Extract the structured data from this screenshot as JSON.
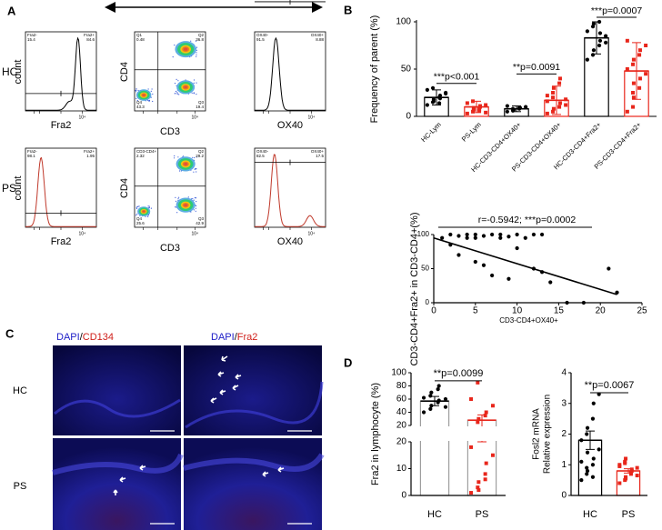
{
  "panel_labels": {
    "a": "A",
    "b": "B",
    "c": "C",
    "d": "D"
  },
  "panel_a": {
    "row_labels": [
      "HC",
      "PS"
    ],
    "count_label": "count",
    "x_labels": [
      "Fra2",
      "CD3",
      "OX40"
    ],
    "cd4_label": "CD4",
    "tick_label": "10⁴",
    "rows": [
      {
        "fra2": [
          "Fra2-",
          "15.4",
          "Fra2+",
          "84.6"
        ],
        "cd3cd4": [
          "Q1",
          "0.48",
          "Q2",
          "36.8",
          "Q4",
          "43.3",
          "Q3",
          "19.4"
        ],
        "ox40": [
          "OX40-",
          "91.5",
          "OX40+",
          "8.88"
        ]
      },
      {
        "fra2": [
          "Fra2-",
          "98.1",
          "Fra2+",
          "1.95"
        ],
        "cd3cd4": [
          "CD3-CD4+",
          "2.32",
          "Q2",
          "29.2",
          "Q4",
          "25.6",
          "Q3",
          "42.9"
        ],
        "ox40": [
          "OX40-",
          "82.5",
          "OX40+",
          "17.5"
        ]
      }
    ]
  },
  "panel_b": {
    "bar_chart": {
      "type": "dot-bar",
      "y_label": "Frequency of parent (%)",
      "categories": [
        "HC-Lym",
        "PS-Lym",
        "HC-CD3-CD4+OX40+",
        "PS-CD3-CD4+OX40+",
        "HC-CD3-CD4+Fra2+",
        "PS-CD3-CD4+Fra2+"
      ],
      "means": [
        20,
        10,
        8,
        17,
        83,
        48
      ],
      "errors": [
        8,
        6,
        3,
        15,
        17,
        30
      ],
      "points": [
        [
          12,
          15,
          18,
          20,
          22,
          25,
          28,
          30,
          16,
          14,
          19,
          24
        ],
        [
          3,
          5,
          7,
          8,
          10,
          12,
          14,
          16,
          9,
          6,
          11,
          4
        ],
        [
          5,
          6,
          7,
          8,
          9,
          10,
          11,
          8,
          7,
          9
        ],
        [
          3,
          5,
          8,
          10,
          14,
          18,
          22,
          25,
          30,
          35,
          40,
          12,
          16,
          20
        ],
        [
          60,
          65,
          70,
          75,
          80,
          85,
          90,
          95,
          98,
          100,
          88,
          78
        ],
        [
          5,
          10,
          20,
          30,
          40,
          45,
          50,
          55,
          60,
          65,
          70,
          75,
          80,
          25,
          35
        ]
      ],
      "colors": [
        "#000000",
        "#e8261b",
        "#000000",
        "#e8261b",
        "#000000",
        "#e8261b"
      ],
      "markers": [
        "circle",
        "square",
        "circle",
        "square",
        "circle",
        "square"
      ],
      "ylim": [
        0,
        100
      ],
      "yticks": [
        0,
        50,
        100
      ],
      "annotations": [
        "***p<0.001",
        "**p=0.0091",
        "***p=0.0007"
      ]
    },
    "scatter": {
      "type": "scatter",
      "annotation": "r=-0.5942; ***p=0.0002",
      "x_label": "CD3-CD4+OX40+",
      "y_label": "CD3-CD4+Fra2+ in CD3-CD4+(%)",
      "x": [
        1,
        2,
        2,
        3,
        3,
        4,
        4,
        5,
        5,
        5,
        6,
        6,
        7,
        7,
        8,
        8,
        9,
        9,
        10,
        10,
        11,
        12,
        12,
        13,
        13,
        14,
        16,
        18,
        21,
        22
      ],
      "y": [
        95,
        100,
        85,
        98,
        70,
        95,
        100,
        60,
        100,
        95,
        55,
        98,
        100,
        40,
        95,
        100,
        35,
        97,
        100,
        80,
        95,
        100,
        50,
        45,
        100,
        30,
        0,
        0,
        50,
        15
      ],
      "trend_line": {
        "x": [
          0,
          22
        ],
        "y": [
          95,
          12
        ]
      },
      "xlim": [
        0,
        25
      ],
      "xticks": [
        0,
        5,
        10,
        15,
        20,
        25
      ],
      "ylim": [
        0,
        100
      ],
      "yticks": [
        0,
        50,
        100
      ]
    }
  },
  "panel_c": {
    "column_labels": [
      [
        "DAPI",
        "/",
        "CD134"
      ],
      [
        "DAPI",
        "/",
        "Fra2"
      ]
    ],
    "row_labels": [
      "HC",
      "PS"
    ]
  },
  "panel_d": {
    "left": {
      "type": "dot-bar-broken",
      "y_label": "Fra2 in lymphocyte (%)",
      "categories": [
        "HC",
        "PS"
      ],
      "means": [
        57,
        28
      ],
      "errors": [
        7,
        8
      ],
      "points": [
        [
          40,
          45,
          50,
          55,
          58,
          60,
          62,
          65,
          70,
          75,
          80,
          48
        ],
        [
          1,
          3,
          5,
          8,
          12,
          15,
          18,
          25,
          30,
          35,
          40,
          50,
          60,
          85,
          2,
          6
        ]
      ],
      "colors": [
        "#000000",
        "#e8261b"
      ],
      "bar_colors": [
        "#9e9e9e",
        "#9e9e9e"
      ],
      "markers": [
        "circle",
        "square"
      ],
      "ylim_top": [
        20,
        100
      ],
      "yticks_top": [
        20,
        40,
        60,
        80,
        100
      ],
      "ylim_bottom": [
        0,
        20
      ],
      "yticks_bottom": [
        0,
        10,
        20
      ],
      "annotation": "**p=0.0099"
    },
    "right": {
      "type": "dot-bar",
      "y_label": [
        "Fosl2 mRNA",
        "Relative expression"
      ],
      "categories": [
        "HC",
        "PS"
      ],
      "means": [
        1.8,
        0.8
      ],
      "errors": [
        0.3,
        0.07
      ],
      "points": [
        [
          0.5,
          0.7,
          0.8,
          1.0,
          1.2,
          1.5,
          1.8,
          2.0,
          2.2,
          2.5,
          3.0,
          3.3,
          1.1,
          0.9,
          1.4,
          0.6
        ],
        [
          0.4,
          0.5,
          0.6,
          0.7,
          0.8,
          0.9,
          1.0,
          1.1,
          1.2,
          0.75,
          0.85,
          0.65,
          0.95,
          1.05,
          0.55
        ]
      ],
      "colors": [
        "#000000",
        "#e8261b"
      ],
      "bar_colors": [
        "#000000",
        "#e8261b"
      ],
      "markers": [
        "circle",
        "square"
      ],
      "ylim": [
        0,
        4
      ],
      "yticks": [
        0,
        1,
        2,
        3,
        4
      ],
      "annotation": "**p=0.0067"
    }
  }
}
